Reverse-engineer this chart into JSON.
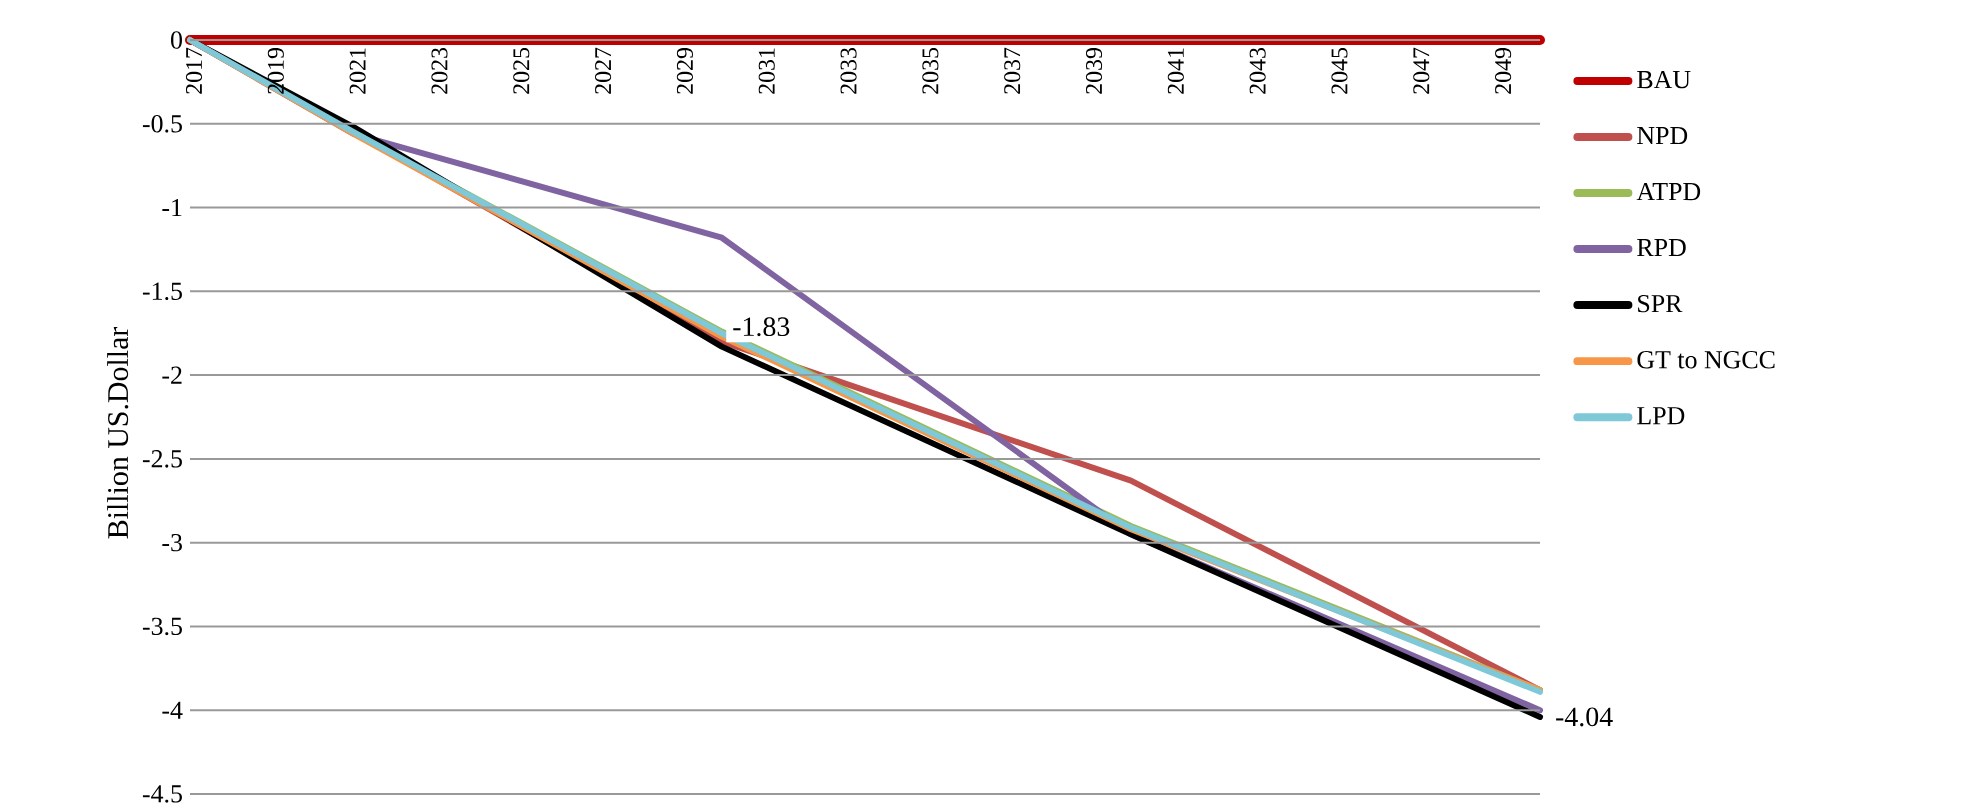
{
  "chart_data": {
    "type": "line",
    "ylabel": "Billion US.Dollar",
    "xlim": [
      2017,
      2050
    ],
    "xticks": [
      2017,
      2019,
      2021,
      2023,
      2025,
      2027,
      2029,
      2031,
      2033,
      2035,
      2037,
      2039,
      2041,
      2043,
      2045,
      2047,
      2049
    ],
    "ylim": [
      -4.5,
      0
    ],
    "yticks": [
      -4.5,
      -4,
      -3.5,
      -3,
      -2.5,
      -2,
      -1.5,
      -1,
      -0.5,
      0
    ],
    "grid": "y",
    "legend": "right",
    "marker": "none",
    "line_style": "solid",
    "x": [
      2017,
      2021,
      2030,
      2040,
      2050
    ],
    "series": [
      {
        "name": "BAU",
        "color": "#c00000",
        "values": [
          0,
          0,
          0,
          0,
          0
        ]
      },
      {
        "name": "NPD",
        "color": "#c0504d",
        "values": [
          0,
          -0.55,
          -1.8,
          -2.63,
          -3.88
        ]
      },
      {
        "name": "ATPD",
        "color": "#9bbb59",
        "values": [
          0,
          -0.55,
          -1.74,
          -2.9,
          -3.88
        ]
      },
      {
        "name": "RPD",
        "color": "#8064a2",
        "values": [
          0,
          -0.56,
          -1.18,
          -2.95,
          -4.0
        ]
      },
      {
        "name": "SPR",
        "color": "#000000",
        "values": [
          0,
          -0.52,
          -1.83,
          -2.95,
          -4.04
        ],
        "value_labels": [
          null,
          null,
          "-1.83",
          null,
          "-4.04"
        ]
      },
      {
        "name": "GT to NGCC",
        "color": "#f79646",
        "values": [
          0,
          -0.56,
          -1.77,
          -2.92,
          -3.88
        ]
      },
      {
        "name": "LPD",
        "color": "#7ec8d8",
        "values": [
          0,
          -0.55,
          -1.75,
          -2.91,
          -3.89
        ]
      }
    ]
  }
}
